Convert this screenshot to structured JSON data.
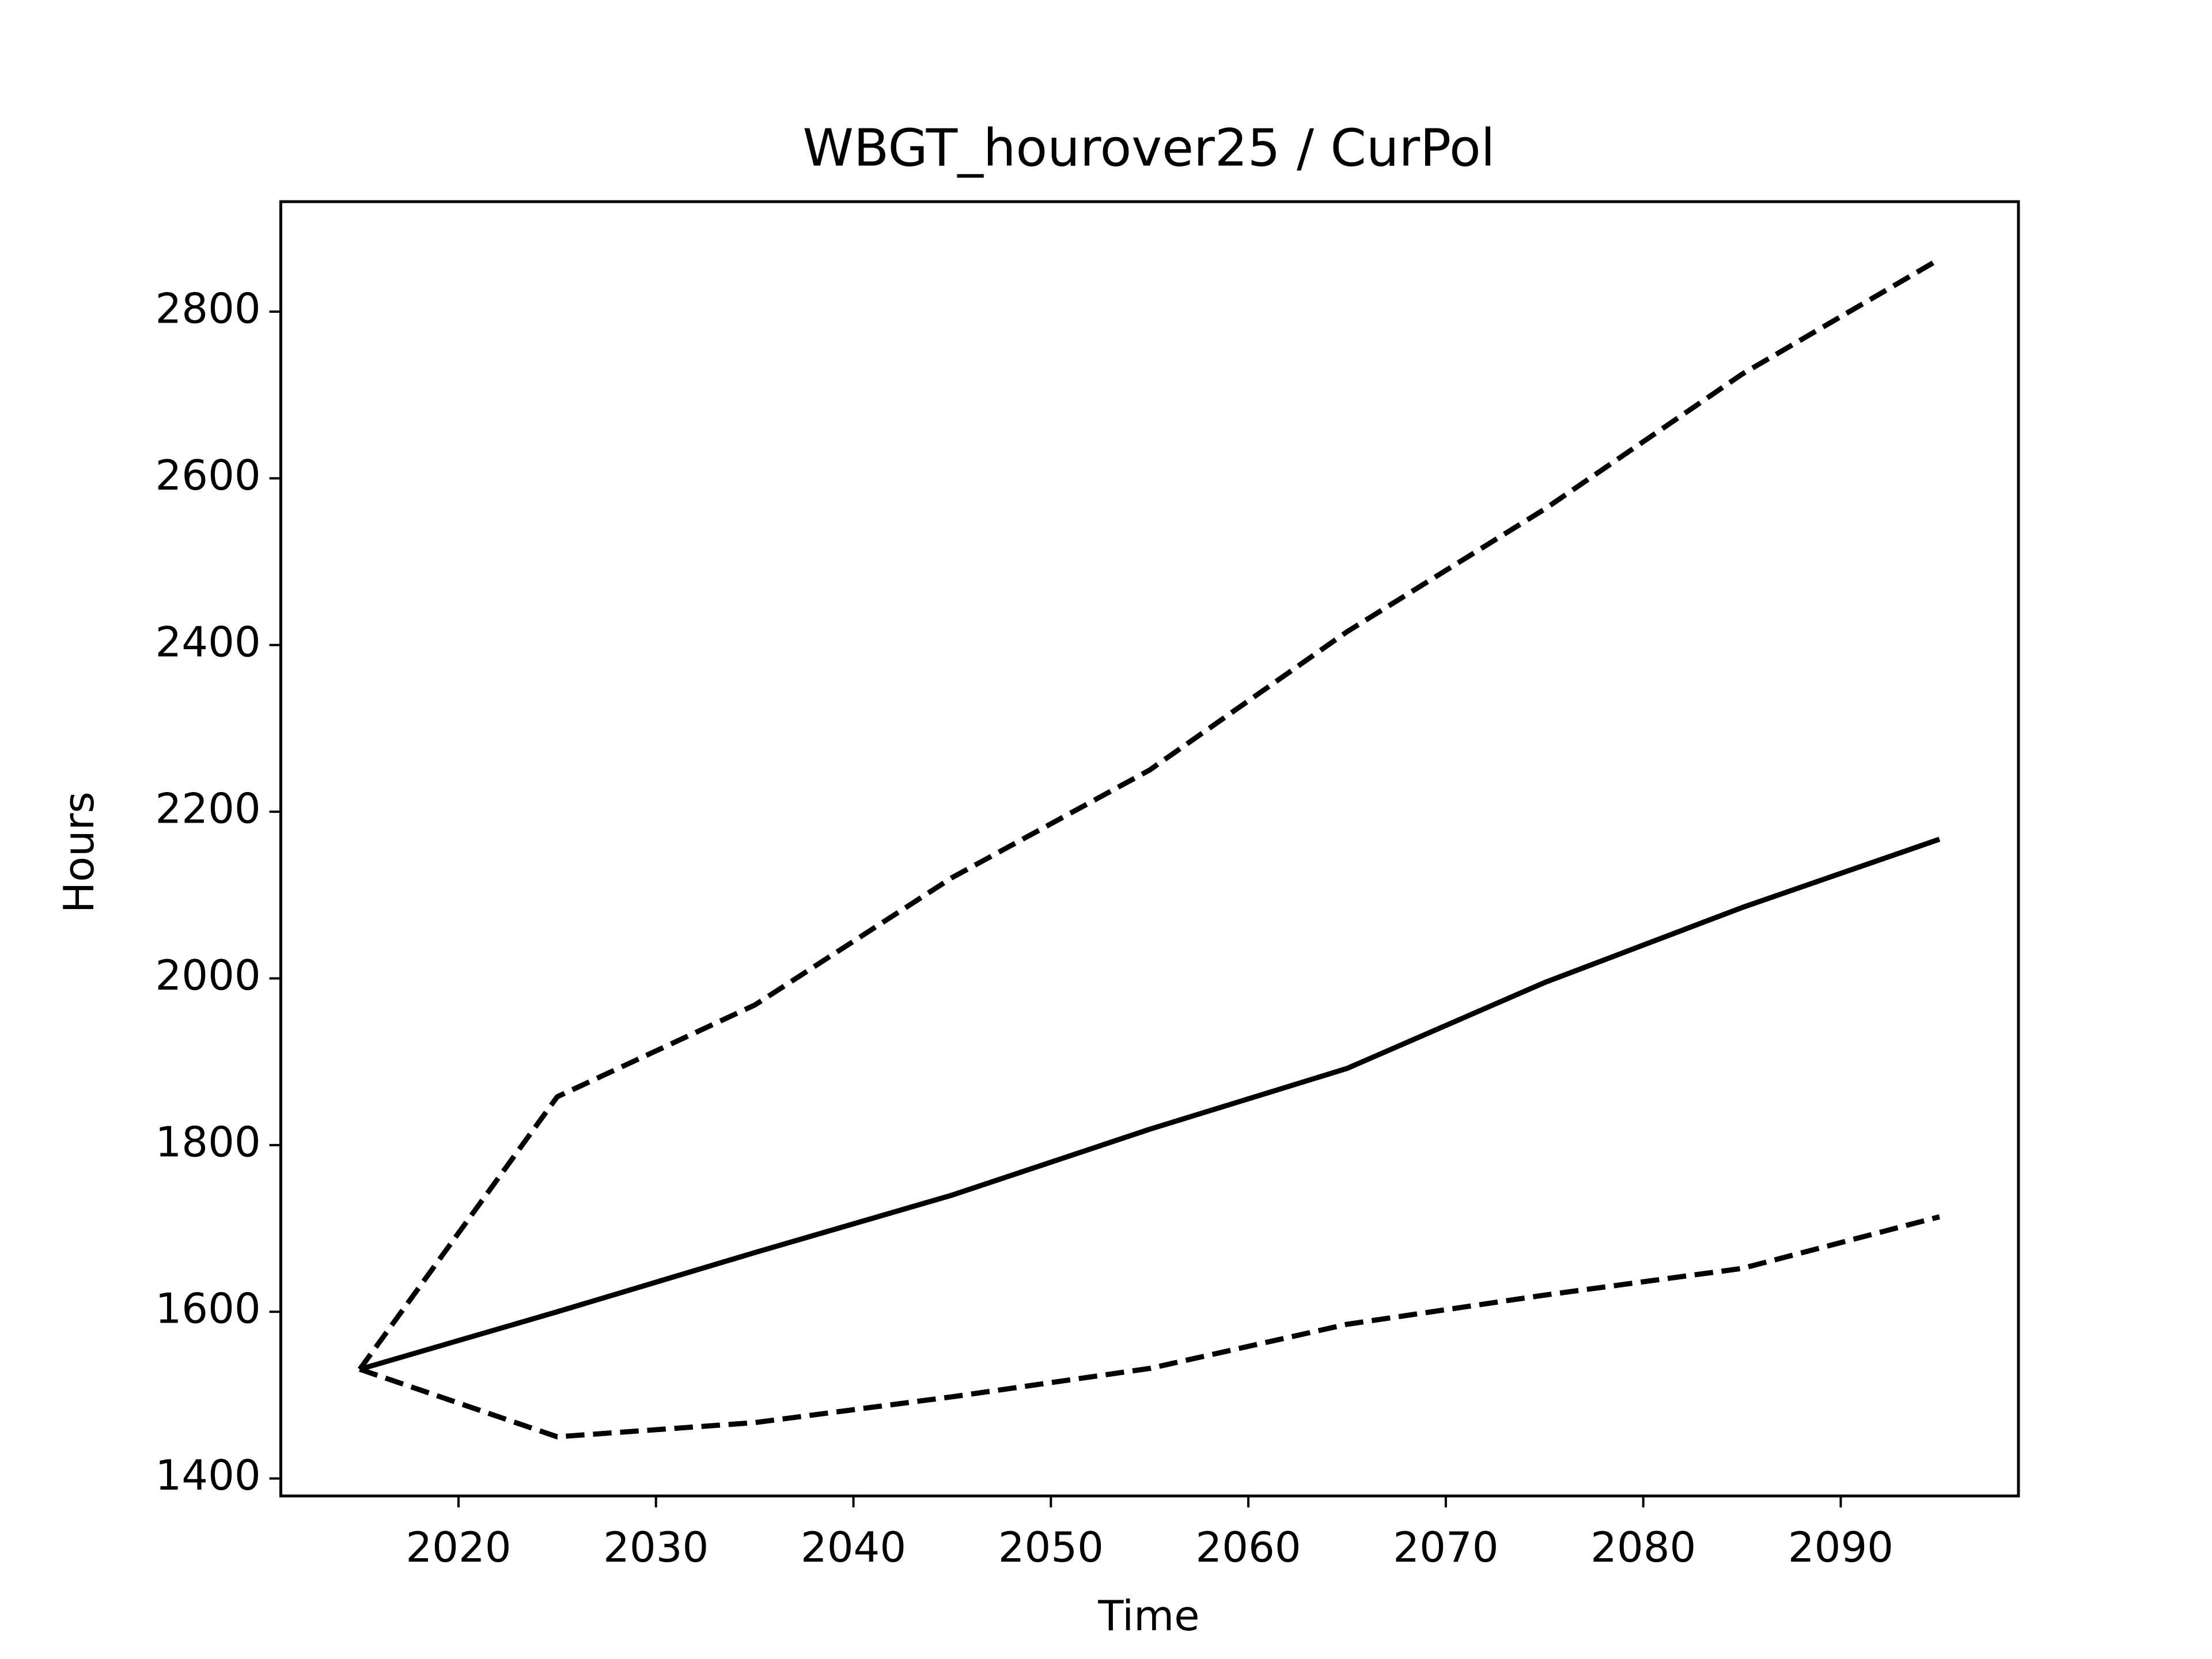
{
  "chart_data": {
    "type": "line",
    "title": "WBGT_hourover25 / CurPol",
    "x_label": "Time",
    "y_label": "Hours",
    "x": [
      2015,
      2025,
      2035,
      2045,
      2055,
      2065,
      2075,
      2085,
      2095
    ],
    "series": [
      {
        "color": "#000000",
        "dash": "solid",
        "values": [
          1531,
          1600,
          1671,
          1740,
          1819,
          1892,
          1995,
          2085,
          2167
        ]
      },
      {
        "color": "#000000",
        "dash": "dashed",
        "values": [
          1531,
          1858,
          1968,
          2121,
          2250,
          2416,
          2563,
          2725,
          2863
        ]
      },
      {
        "color": "#000000",
        "dash": "dashed",
        "values": [
          1531,
          1450,
          1467,
          1498,
          1532,
          1585,
          1620,
          1652,
          1714
        ]
      }
    ],
    "xlim": [
      2011,
      2099
    ],
    "ylim": [
      1379,
      2932
    ],
    "xticks": [
      2020,
      2030,
      2040,
      2050,
      2060,
      2070,
      2080,
      2090
    ],
    "yticks": [
      1400,
      1600,
      1800,
      2000,
      2200,
      2400,
      2600,
      2800
    ],
    "grid": false
  }
}
